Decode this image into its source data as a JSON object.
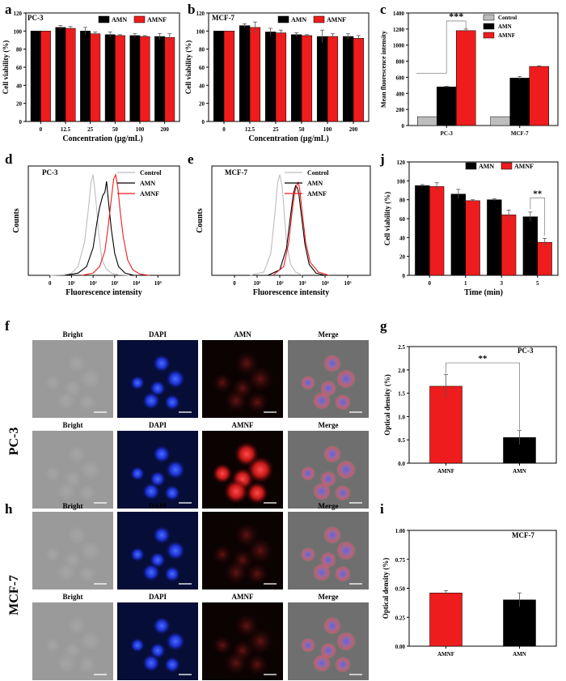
{
  "colors": {
    "amn": "#000000",
    "amnf": "#ee1c1c",
    "control": "#bdbdbd",
    "axis": "#000000"
  },
  "panels": {
    "a": {
      "letter": "a",
      "cell_line": "PC-3"
    },
    "b": {
      "letter": "b",
      "cell_line": "MCF-7"
    },
    "c": {
      "letter": "c",
      "significance": "***"
    },
    "d": {
      "letter": "d",
      "cell_line": "PC-3"
    },
    "e": {
      "letter": "e",
      "cell_line": "MCF-7"
    },
    "j": {
      "letter": "j",
      "significance": "**"
    },
    "f": {
      "letter": "f",
      "cell_line": "PC-3",
      "row1": [
        "Bright",
        "DAPI",
        "AMN",
        "Merge"
      ],
      "row2": [
        "Bright",
        "DAPI",
        "AMNF",
        "Merge"
      ]
    },
    "g": {
      "letter": "g",
      "cell_line": "PC-3",
      "significance": "**"
    },
    "h": {
      "letter": "h",
      "cell_line": "MCF-7",
      "row1": [
        "Bright",
        "DAPI",
        "AMN",
        "Merge"
      ],
      "row2": [
        "Bright",
        "DAPI",
        "AMNF",
        "Merge"
      ]
    },
    "i": {
      "letter": "i",
      "cell_line": "MCF-7"
    }
  },
  "chart_data": [
    {
      "id": "a",
      "type": "bar",
      "xlabel": "Concentration (µg/mL)",
      "ylabel": "Cell viability (%)",
      "ylim": [
        0,
        120
      ],
      "yticks": [
        0,
        20,
        40,
        60,
        80,
        100,
        120
      ],
      "categories": [
        "0",
        "12.5",
        "25",
        "50",
        "100",
        "200"
      ],
      "series": [
        {
          "name": "AMN",
          "values": [
            100,
            104,
            100,
            96,
            95,
            94
          ],
          "errors": [
            0,
            2,
            4,
            3,
            2,
            3
          ]
        },
        {
          "name": "AMNF",
          "values": [
            100,
            103,
            97,
            95,
            94,
            93
          ],
          "errors": [
            0,
            2,
            2,
            1,
            1,
            4
          ]
        }
      ]
    },
    {
      "id": "b",
      "type": "bar",
      "xlabel": "Concentration (µg/mL)",
      "ylabel": "Cell viability (%)",
      "ylim": [
        0,
        120
      ],
      "yticks": [
        0,
        20,
        40,
        60,
        80,
        100,
        120
      ],
      "categories": [
        "0",
        "12.5",
        "25",
        "50",
        "100",
        "200"
      ],
      "series": [
        {
          "name": "AMN",
          "values": [
            100,
            106,
            99,
            96,
            94,
            94
          ],
          "errors": [
            0,
            2,
            4,
            2,
            7,
            3
          ]
        },
        {
          "name": "AMNF",
          "values": [
            100,
            104,
            98,
            95,
            94,
            92
          ],
          "errors": [
            0,
            6,
            3,
            1,
            3,
            3
          ]
        }
      ]
    },
    {
      "id": "c",
      "type": "bar",
      "xlabel": "",
      "ylabel": "Mean fluorescence intensity",
      "ylim": [
        0,
        1400
      ],
      "yticks": [
        0,
        200,
        400,
        600,
        800,
        1000,
        1200,
        1400
      ],
      "categories": [
        "PC-3",
        "MCF-7"
      ],
      "series": [
        {
          "name": "Control",
          "values": [
            110,
            110
          ],
          "errors": [
            0,
            0
          ]
        },
        {
          "name": "AMN",
          "values": [
            480,
            590
          ],
          "errors": [
            8,
            20
          ]
        },
        {
          "name": "AMNF",
          "values": [
            1180,
            735
          ],
          "errors": [
            20,
            8
          ]
        }
      ]
    },
    {
      "id": "d",
      "type": "line",
      "xlabel": "Fluorescence intensity",
      "ylabel": "Counts",
      "xscale": "log",
      "xlim": [
        0.1,
        1000000
      ],
      "xticklabels": [
        "0",
        "10¹",
        "10²",
        "10³",
        "10⁴",
        "10⁵"
      ],
      "series": [
        {
          "name": "Control",
          "x": [
            1,
            5,
            10,
            20,
            40,
            60,
            80,
            100,
            130,
            180,
            250,
            400,
            700,
            1500,
            5000
          ],
          "y": [
            0,
            0.5,
            2,
            8,
            30,
            60,
            85,
            92,
            72,
            40,
            15,
            6,
            2,
            0.5,
            0
          ]
        },
        {
          "name": "AMN",
          "x": [
            5,
            20,
            50,
            100,
            150,
            200,
            280,
            350,
            420,
            500,
            700,
            1000,
            1500,
            3000,
            8000
          ],
          "y": [
            0,
            2,
            8,
            25,
            48,
            62,
            73,
            76,
            86,
            70,
            42,
            20,
            8,
            2,
            0
          ]
        },
        {
          "name": "AMNF",
          "x": [
            30,
            100,
            200,
            350,
            500,
            700,
            900,
            1100,
            1400,
            1800,
            2500,
            4000,
            7000,
            15000,
            40000
          ],
          "y": [
            0,
            2,
            8,
            22,
            45,
            70,
            88,
            92,
            80,
            58,
            35,
            14,
            5,
            1,
            0
          ]
        }
      ]
    },
    {
      "id": "e",
      "type": "line",
      "xlabel": "Fluorescence intensity",
      "ylabel": "Counts",
      "xscale": "log",
      "xlim": [
        0.1,
        1000000
      ],
      "xticklabels": [
        "0",
        "10¹",
        "10²",
        "10³",
        "10⁴",
        "10⁵"
      ],
      "series": [
        {
          "name": "Control",
          "x": [
            5,
            20,
            40,
            60,
            80,
            100,
            130,
            160,
            200,
            300,
            500,
            1000
          ],
          "y": [
            0,
            3,
            20,
            55,
            85,
            92,
            80,
            55,
            30,
            10,
            3,
            0
          ]
        },
        {
          "name": "AMN",
          "x": [
            30,
            100,
            200,
            300,
            400,
            500,
            600,
            700,
            900,
            1300,
            2000,
            4000,
            10000
          ],
          "y": [
            0,
            5,
            25,
            55,
            75,
            82,
            80,
            74,
            55,
            28,
            10,
            2,
            0
          ]
        },
        {
          "name": "AMNF",
          "x": [
            50,
            150,
            250,
            350,
            450,
            550,
            650,
            750,
            950,
            1400,
            2200,
            5000,
            15000
          ],
          "y": [
            0,
            8,
            30,
            58,
            75,
            82,
            85,
            80,
            60,
            30,
            12,
            3,
            0
          ]
        }
      ]
    },
    {
      "id": "j",
      "type": "bar",
      "xlabel": "Time (min)",
      "ylabel": "Cell viability (%)",
      "ylim": [
        0,
        120
      ],
      "yticks": [
        0,
        20,
        40,
        60,
        80,
        100,
        120
      ],
      "categories": [
        "0",
        "1",
        "3",
        "5"
      ],
      "series": [
        {
          "name": "AMN",
          "values": [
            95,
            86,
            80,
            62
          ],
          "errors": [
            1,
            5,
            1,
            5
          ]
        },
        {
          "name": "AMNF",
          "values": [
            94,
            79,
            64,
            35
          ],
          "errors": [
            4,
            1,
            5,
            4
          ]
        }
      ]
    },
    {
      "id": "g",
      "type": "bar",
      "xlabel": "",
      "ylabel": "Optical density (%)",
      "ylim": [
        0,
        2.5
      ],
      "yticks": [
        0.0,
        0.5,
        1.0,
        1.5,
        2.0,
        2.5
      ],
      "categories": [
        "AMNF",
        "AMN"
      ],
      "values": [
        1.65,
        0.55
      ],
      "errors": [
        0.25,
        0.15
      ]
    },
    {
      "id": "i",
      "type": "bar",
      "xlabel": "",
      "ylabel": "Optical density (%)",
      "ylim": [
        0,
        1.0
      ],
      "yticks": [
        0.0,
        0.25,
        0.5,
        0.75,
        1.0
      ],
      "yticklabels": [
        "0.00",
        "0.25",
        "0.50",
        "0.75",
        "1.00"
      ],
      "categories": [
        "AMNF",
        "AMN"
      ],
      "values": [
        0.46,
        0.4
      ],
      "errors": [
        0.02,
        0.06
      ]
    }
  ]
}
